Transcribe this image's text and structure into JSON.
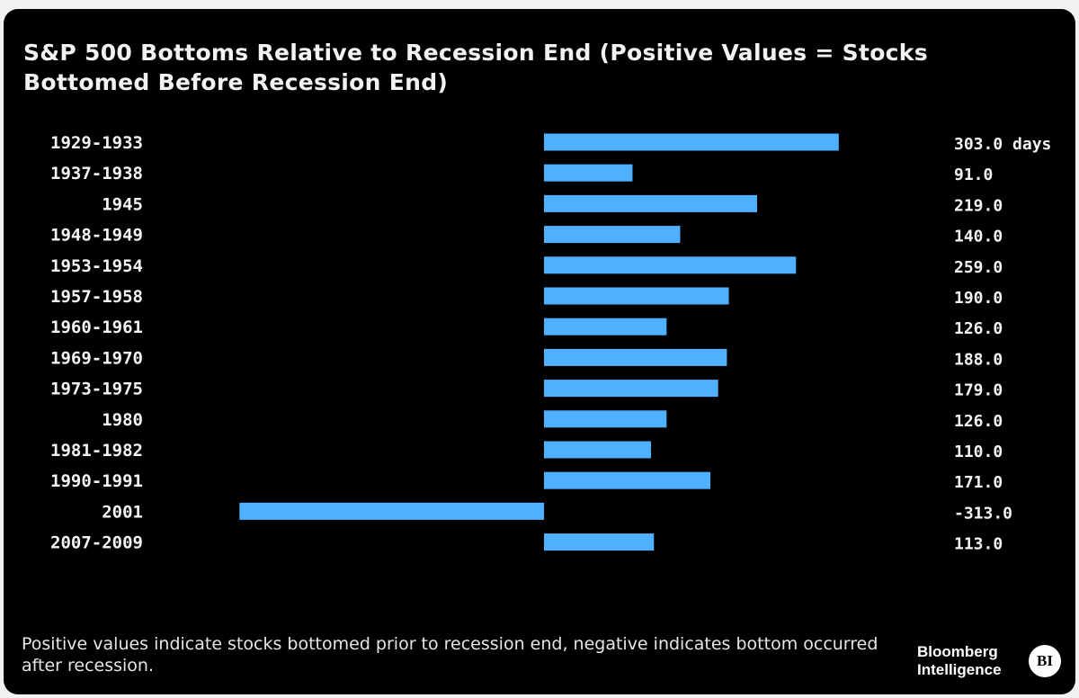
{
  "chart_data": {
    "type": "bar",
    "orientation": "horizontal",
    "title": "S&P 500 Bottoms Relative to Recession End (Positive Values = Stocks Bottomed Before Recession End)",
    "categories": [
      "1929-1933",
      "1937-1938",
      "1945",
      "1948-1949",
      "1953-1954",
      "1957-1958",
      "1960-1961",
      "1969-1970",
      "1973-1975",
      "1980",
      "1981-1982",
      "1990-1991",
      "2001",
      "2007-2009"
    ],
    "values": [
      303,
      91,
      219,
      140,
      259,
      190,
      126,
      188,
      179,
      126,
      110,
      171,
      -313,
      113
    ],
    "value_labels": [
      "303.0 days",
      "91.0",
      "219.0",
      "140.0",
      "259.0",
      "190.0",
      "126.0",
      "188.0",
      "179.0",
      "126.0",
      "110.0",
      "171.0",
      "-313.0",
      "113.0"
    ],
    "xlim": [
      -313,
      303
    ],
    "xlabel": "",
    "ylabel": "",
    "grid": false,
    "bar_color": "#4fb0ff",
    "background_color": "#000000"
  },
  "footnote": "Positive values indicate stocks bottomed prior to recession end, negative indicates bottom occurred after recession.",
  "logo": {
    "line1": "Bloomberg",
    "line2": "Intelligence",
    "badge": "BI"
  }
}
